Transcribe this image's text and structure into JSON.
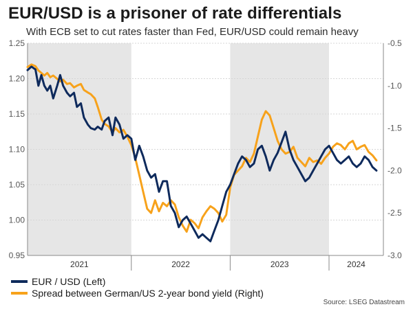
{
  "title": "EUR/USD is a prisoner of rate differentials",
  "subtitle": "With ECB set to cut rates faster than Fed, EUR/USD could remain heavy",
  "source": "Source: LSEG Datastream",
  "colors": {
    "eurusd": "#0e2a5c",
    "spread": "#f7a21b",
    "shade": "#e6e6e6",
    "grid": "#d6d6d6"
  },
  "chart_data": {
    "type": "line",
    "x_unit": "year (decimal)",
    "x_range": [
      2020.95,
      2024.55
    ],
    "grid": true,
    "legend_position": "bottom-left",
    "shaded_years": [
      2020.95,
      2022.0,
      2023.0,
      2024.0
    ],
    "x_tick_labels": [
      "2021",
      "2022",
      "2023",
      "2024"
    ],
    "left_axis": {
      "ylim": [
        0.95,
        1.25
      ],
      "ticks": [
        "0.95",
        "1.00",
        "1.05",
        "1.10",
        "1.15",
        "1.20",
        "1.25"
      ]
    },
    "right_axis": {
      "ylim": [
        -3.0,
        -0.5
      ],
      "ticks": [
        "-3.0",
        "-2.5",
        "-2.0",
        "-1.5",
        "-1.0",
        "-0.5"
      ]
    },
    "series": [
      {
        "name": "EUR / USD (Left)",
        "axis": "left",
        "x": [
          2020.95,
          2020.99,
          2021.03,
          2021.06,
          2021.09,
          2021.12,
          2021.15,
          2021.18,
          2021.21,
          2021.25,
          2021.28,
          2021.31,
          2021.35,
          2021.38,
          2021.42,
          2021.45,
          2021.49,
          2021.52,
          2021.56,
          2021.59,
          2021.63,
          2021.66,
          2021.7,
          2021.73,
          2021.77,
          2021.81,
          2021.84,
          2021.88,
          2021.92,
          2021.96,
          2022.0,
          2022.04,
          2022.08,
          2022.12,
          2022.16,
          2022.2,
          2022.24,
          2022.28,
          2022.32,
          2022.36,
          2022.4,
          2022.44,
          2022.48,
          2022.52,
          2022.56,
          2022.6,
          2022.64,
          2022.68,
          2022.72,
          2022.76,
          2022.8,
          2022.84,
          2022.88,
          2022.92,
          2022.96,
          2023.0,
          2023.04,
          2023.08,
          2023.12,
          2023.16,
          2023.2,
          2023.24,
          2023.28,
          2023.32,
          2023.36,
          2023.4,
          2023.44,
          2023.48,
          2023.52,
          2023.56,
          2023.6,
          2023.64,
          2023.68,
          2023.72,
          2023.76,
          2023.8,
          2023.84,
          2023.88,
          2023.92,
          2023.96,
          2024.0,
          2024.04,
          2024.08,
          2024.12,
          2024.16,
          2024.2,
          2024.24,
          2024.28,
          2024.32,
          2024.36,
          2024.4,
          2024.44,
          2024.48
        ],
        "values": [
          1.212,
          1.217,
          1.213,
          1.19,
          1.205,
          1.19,
          1.183,
          1.19,
          1.172,
          1.19,
          1.205,
          1.19,
          1.18,
          1.175,
          1.18,
          1.16,
          1.165,
          1.145,
          1.135,
          1.13,
          1.128,
          1.132,
          1.128,
          1.14,
          1.145,
          1.12,
          1.145,
          1.135,
          1.115,
          1.12,
          1.115,
          1.085,
          1.105,
          1.09,
          1.07,
          1.06,
          1.065,
          1.04,
          1.055,
          1.055,
          1.02,
          1.01,
          0.99,
          1.0,
          1.005,
          0.995,
          0.985,
          0.975,
          0.98,
          0.975,
          0.97,
          0.985,
          1.0,
          1.02,
          1.04,
          1.05,
          1.065,
          1.08,
          1.09,
          1.085,
          1.075,
          1.08,
          1.1,
          1.105,
          1.09,
          1.07,
          1.085,
          1.095,
          1.11,
          1.125,
          1.1,
          1.085,
          1.075,
          1.065,
          1.055,
          1.06,
          1.07,
          1.08,
          1.09,
          1.1,
          1.105,
          1.095,
          1.085,
          1.08,
          1.085,
          1.09,
          1.08,
          1.075,
          1.08,
          1.09,
          1.085,
          1.075,
          1.07
        ]
      },
      {
        "name": "Spread between German/US 2-year bond yield (Right)",
        "axis": "right",
        "x": [
          2020.95,
          2020.99,
          2021.03,
          2021.06,
          2021.09,
          2021.12,
          2021.15,
          2021.18,
          2021.21,
          2021.25,
          2021.28,
          2021.31,
          2021.35,
          2021.38,
          2021.42,
          2021.45,
          2021.49,
          2021.52,
          2021.56,
          2021.59,
          2021.63,
          2021.66,
          2021.7,
          2021.73,
          2021.77,
          2021.81,
          2021.84,
          2021.88,
          2021.92,
          2021.96,
          2022.0,
          2022.04,
          2022.08,
          2022.12,
          2022.16,
          2022.2,
          2022.24,
          2022.28,
          2022.32,
          2022.36,
          2022.4,
          2022.44,
          2022.48,
          2022.52,
          2022.56,
          2022.6,
          2022.64,
          2022.68,
          2022.72,
          2022.76,
          2022.8,
          2022.84,
          2022.88,
          2022.92,
          2022.96,
          2023.0,
          2023.04,
          2023.08,
          2023.12,
          2023.16,
          2023.2,
          2023.24,
          2023.28,
          2023.32,
          2023.36,
          2023.4,
          2023.44,
          2023.48,
          2023.52,
          2023.56,
          2023.6,
          2023.64,
          2023.68,
          2023.72,
          2023.76,
          2023.8,
          2023.84,
          2023.88,
          2023.92,
          2023.96,
          2024.0,
          2024.04,
          2024.08,
          2024.12,
          2024.16,
          2024.2,
          2024.24,
          2024.28,
          2024.32,
          2024.36,
          2024.4,
          2024.44,
          2024.48
        ],
        "values": [
          -0.78,
          -0.75,
          -0.77,
          -0.82,
          -0.85,
          -0.88,
          -0.85,
          -0.9,
          -0.88,
          -0.92,
          -0.95,
          -0.93,
          -0.98,
          -0.97,
          -1.02,
          -1.0,
          -0.98,
          -1.05,
          -1.08,
          -1.1,
          -1.15,
          -1.25,
          -1.4,
          -1.45,
          -1.48,
          -1.55,
          -1.5,
          -1.55,
          -1.52,
          -1.6,
          -1.7,
          -1.85,
          -2.05,
          -2.25,
          -2.45,
          -2.5,
          -2.35,
          -2.48,
          -2.38,
          -2.42,
          -2.35,
          -2.4,
          -2.55,
          -2.65,
          -2.72,
          -2.58,
          -2.62,
          -2.68,
          -2.55,
          -2.48,
          -2.42,
          -2.45,
          -2.5,
          -2.6,
          -2.52,
          -2.2,
          -2.05,
          -2.0,
          -1.95,
          -1.85,
          -1.9,
          -1.8,
          -1.6,
          -1.4,
          -1.3,
          -1.35,
          -1.5,
          -1.65,
          -1.75,
          -1.8,
          -1.78,
          -1.72,
          -1.85,
          -1.9,
          -1.95,
          -1.85,
          -1.9,
          -1.88,
          -1.92,
          -1.85,
          -1.8,
          -1.72,
          -1.68,
          -1.7,
          -1.75,
          -1.68,
          -1.65,
          -1.75,
          -1.72,
          -1.7,
          -1.78,
          -1.82,
          -1.88
        ]
      }
    ]
  }
}
